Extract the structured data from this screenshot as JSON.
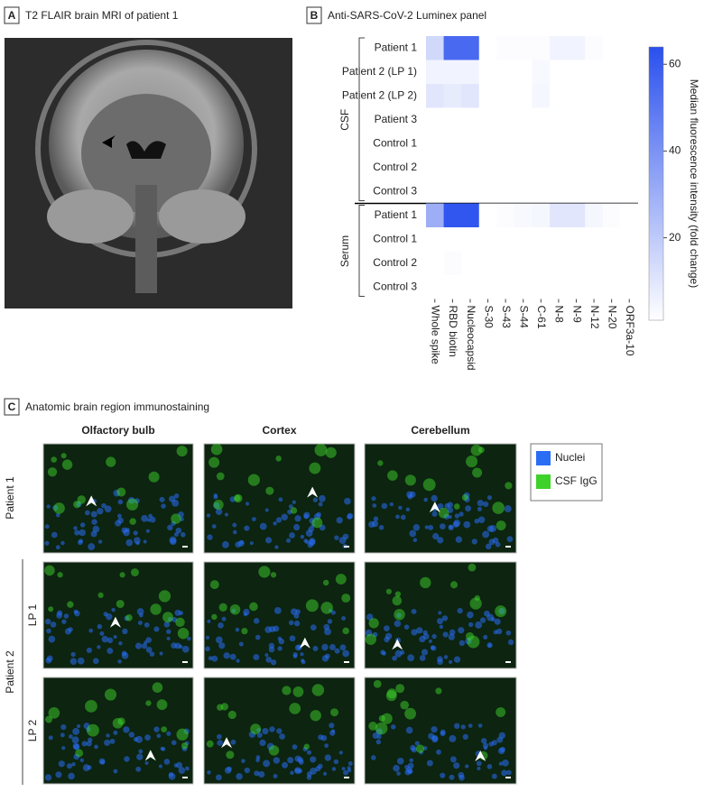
{
  "panel_a": {
    "letter": "A",
    "title": "T2 FLAIR brain MRI of patient 1"
  },
  "panel_b": {
    "letter": "B",
    "title": "Anti-SARS-CoV-2 Luminex panel"
  },
  "chart_data": {
    "type": "heatmap",
    "columns": [
      "Whole spike",
      "RBD biotin",
      "Nucleocapsid",
      "S-30",
      "S-43",
      "S-44",
      "C-61",
      "N-8",
      "N-9",
      "N-12",
      "N-20",
      "ORF3a-10"
    ],
    "groups": [
      {
        "name": "CSF",
        "rows": [
          "Patient 1",
          "Patient 2 (LP 1)",
          "Patient 2 (LP 2)",
          "Patient 3",
          "Control 1",
          "Control 2",
          "Control 3"
        ],
        "values": [
          [
            15,
            55,
            55,
            1,
            2,
            2,
            2,
            5,
            5,
            2,
            1,
            1
          ],
          [
            5,
            5,
            5,
            1,
            1,
            1,
            3,
            1,
            1,
            1,
            1,
            1
          ],
          [
            10,
            8,
            10,
            1,
            1,
            1,
            4,
            1,
            1,
            1,
            1,
            1
          ],
          [
            1,
            1,
            1,
            1,
            1,
            1,
            1,
            1,
            1,
            1,
            1,
            1
          ],
          [
            1,
            1,
            1,
            1,
            1,
            1,
            1,
            1,
            1,
            1,
            1,
            1
          ],
          [
            1,
            1,
            1,
            1,
            1,
            1,
            1,
            1,
            1,
            1,
            1,
            1
          ],
          [
            1,
            1,
            1,
            1,
            1,
            1,
            1,
            1,
            1,
            1,
            1,
            1
          ]
        ]
      },
      {
        "name": "Serum",
        "rows": [
          "Patient 1",
          "Control 1",
          "Control 2",
          "Control 3"
        ],
        "values": [
          [
            30,
            62,
            62,
            1,
            2,
            3,
            4,
            10,
            10,
            4,
            2,
            1
          ],
          [
            1,
            1,
            1,
            1,
            1,
            1,
            1,
            1,
            1,
            1,
            1,
            1
          ],
          [
            1,
            2,
            1,
            1,
            1,
            1,
            1,
            1,
            1,
            1,
            1,
            1
          ],
          [
            1,
            1,
            1,
            1,
            1,
            1,
            1,
            1,
            1,
            1,
            1,
            1
          ]
        ]
      }
    ],
    "colorbar_label": "Median fluorescence intensity (fold change)",
    "clim": [
      1,
      64
    ],
    "cticks": [
      20,
      40,
      60
    ],
    "colormap": [
      "#ffffff",
      "#2a50ee"
    ]
  },
  "panel_c": {
    "letter": "C",
    "title": "Anatomic brain region immunostaining",
    "columns": [
      "Olfactory bulb",
      "Cortex",
      "Cerebellum"
    ],
    "patient_1": "Patient 1",
    "patient_2": "Patient 2",
    "lp_rows": [
      "LP 1",
      "LP 2"
    ],
    "legend": [
      {
        "name": "Nuclei",
        "color": "#2a6df5"
      },
      {
        "name": "CSF IgG",
        "color": "#3ed12a"
      }
    ]
  }
}
